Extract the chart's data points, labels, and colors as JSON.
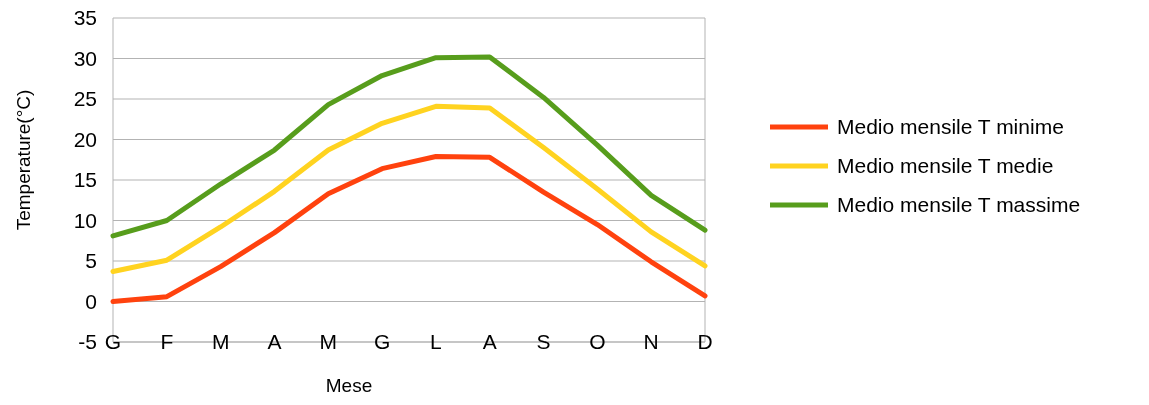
{
  "chart_data": {
    "type": "line",
    "xlabel": "Mese",
    "ylabel": "Temperature(°C)",
    "categories": [
      "G",
      "F",
      "M",
      "A",
      "M",
      "G",
      "L",
      "A",
      "S",
      "O",
      "N",
      "D"
    ],
    "series": [
      {
        "name": "Medio mensile T minime",
        "color": "#ff420e",
        "values": [
          0,
          0.6,
          4.3,
          8.5,
          13.3,
          16.4,
          17.9,
          17.8,
          13.5,
          9.5,
          4.9,
          0.7
        ]
      },
      {
        "name": "Medio mensile T medie",
        "color": "#ffd320",
        "values": [
          3.7,
          5.1,
          9.2,
          13.6,
          18.7,
          22,
          24.1,
          23.9,
          19,
          13.9,
          8.6,
          4.4
        ]
      },
      {
        "name": "Medio mensile T massime",
        "color": "#579d1c",
        "values": [
          8.1,
          10,
          14.5,
          18.7,
          24.3,
          27.9,
          30.1,
          30.2,
          25.2,
          19.3,
          13.1,
          8.8
        ]
      }
    ],
    "ylim": [
      -5,
      35
    ],
    "yticks": [
      -5,
      0,
      5,
      10,
      15,
      20,
      25,
      30,
      35
    ],
    "grid": "y",
    "legend": "right",
    "marker": "none",
    "line_style": "solid"
  }
}
